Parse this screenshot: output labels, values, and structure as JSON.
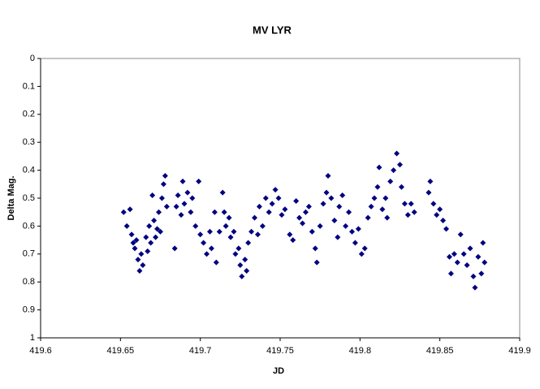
{
  "chart_data": {
    "type": "scatter",
    "title": "MV LYR",
    "x_label": "JD",
    "y_label": "Delta Mag.",
    "color": "#000080",
    "y_reversed": true,
    "grid": false,
    "xlim": [
      419.6,
      419.9
    ],
    "xticks": [
      419.6,
      419.65,
      419.7,
      419.75,
      419.8,
      419.85,
      419.9
    ],
    "ylim": [
      0,
      1
    ],
    "yticks": [
      0,
      0.1,
      0.2,
      0.3,
      0.4,
      0.5,
      0.6,
      0.7,
      0.8,
      0.9,
      1
    ],
    "x": [
      419.652,
      419.654,
      419.656,
      419.657,
      419.658,
      419.659,
      419.66,
      419.661,
      419.662,
      419.663,
      419.664,
      419.666,
      419.667,
      419.668,
      419.669,
      419.67,
      419.671,
      419.672,
      419.673,
      419.674,
      419.675,
      419.676,
      419.677,
      419.678,
      419.679,
      419.684,
      419.685,
      419.686,
      419.688,
      419.689,
      419.69,
      419.692,
      419.694,
      419.695,
      419.697,
      419.699,
      419.7,
      419.702,
      419.704,
      419.706,
      419.707,
      419.709,
      419.71,
      419.712,
      419.714,
      419.715,
      419.716,
      419.718,
      419.719,
      419.721,
      419.722,
      419.724,
      419.725,
      419.726,
      419.728,
      419.729,
      419.73,
      419.732,
      419.734,
      419.736,
      419.737,
      419.739,
      419.741,
      419.743,
      419.745,
      419.747,
      419.749,
      419.751,
      419.753,
      419.756,
      419.758,
      419.76,
      419.762,
      419.764,
      419.766,
      419.768,
      419.77,
      419.772,
      419.773,
      419.775,
      419.777,
      419.779,
      419.78,
      419.782,
      419.784,
      419.786,
      419.787,
      419.789,
      419.791,
      419.793,
      419.795,
      419.797,
      419.799,
      419.801,
      419.803,
      419.805,
      419.807,
      419.809,
      419.811,
      419.812,
      419.814,
      419.816,
      419.817,
      419.819,
      419.821,
      419.823,
      419.825,
      419.826,
      419.828,
      419.83,
      419.832,
      419.834,
      419.843,
      419.844,
      419.846,
      419.848,
      419.85,
      419.852,
      419.854,
      419.856,
      419.857,
      419.859,
      419.861,
      419.863,
      419.865,
      419.867,
      419.869,
      419.871,
      419.872,
      419.874,
      419.876,
      419.877,
      419.878
    ],
    "values": [
      0.55,
      0.6,
      0.54,
      0.63,
      0.66,
      0.68,
      0.65,
      0.72,
      0.76,
      0.7,
      0.74,
      0.64,
      0.69,
      0.6,
      0.66,
      0.49,
      0.58,
      0.64,
      0.61,
      0.55,
      0.62,
      0.5,
      0.45,
      0.42,
      0.53,
      0.68,
      0.53,
      0.49,
      0.56,
      0.44,
      0.52,
      0.48,
      0.55,
      0.5,
      0.6,
      0.44,
      0.63,
      0.66,
      0.7,
      0.62,
      0.68,
      0.55,
      0.73,
      0.62,
      0.48,
      0.55,
      0.6,
      0.57,
      0.64,
      0.62,
      0.7,
      0.68,
      0.74,
      0.78,
      0.72,
      0.76,
      0.66,
      0.62,
      0.57,
      0.63,
      0.53,
      0.6,
      0.5,
      0.55,
      0.52,
      0.47,
      0.5,
      0.56,
      0.54,
      0.63,
      0.65,
      0.51,
      0.57,
      0.59,
      0.55,
      0.53,
      0.62,
      0.68,
      0.73,
      0.6,
      0.52,
      0.48,
      0.42,
      0.5,
      0.58,
      0.64,
      0.53,
      0.49,
      0.6,
      0.55,
      0.62,
      0.66,
      0.61,
      0.7,
      0.68,
      0.57,
      0.53,
      0.5,
      0.46,
      0.39,
      0.54,
      0.5,
      0.57,
      0.44,
      0.4,
      0.34,
      0.38,
      0.46,
      0.52,
      0.56,
      0.52,
      0.55,
      0.48,
      0.44,
      0.52,
      0.56,
      0.54,
      0.58,
      0.61,
      0.71,
      0.77,
      0.7,
      0.73,
      0.63,
      0.7,
      0.74,
      0.68,
      0.78,
      0.82,
      0.71,
      0.77,
      0.66,
      0.73
    ]
  }
}
